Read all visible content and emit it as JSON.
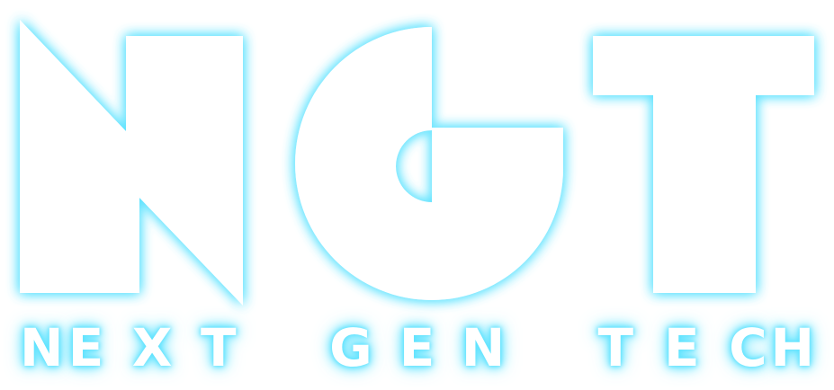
{
  "logo": {
    "monogram": "NGT",
    "tagline": "NEXT GEN TECH",
    "colors": {
      "fill": "#ffffff",
      "glow": "#5fe3ff",
      "background": "#ffffff"
    }
  }
}
